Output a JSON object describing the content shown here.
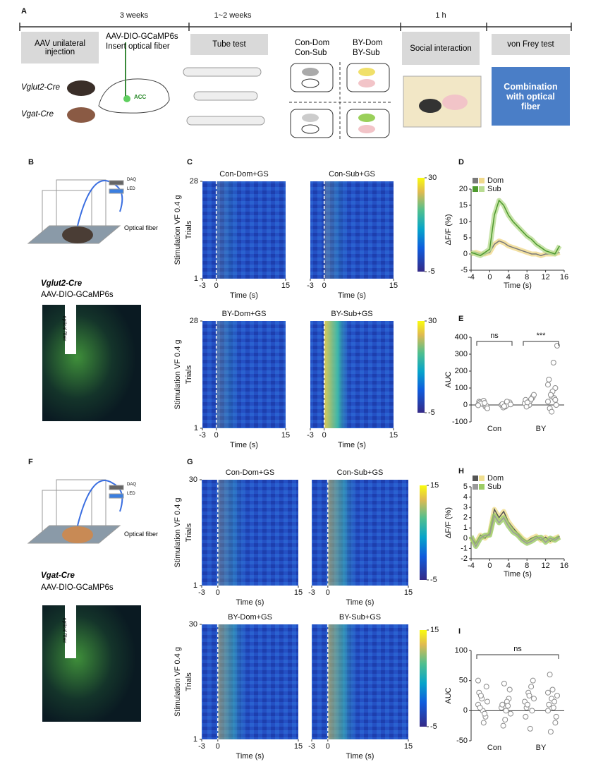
{
  "figure": {
    "panel_letters": [
      "A",
      "B",
      "C",
      "D",
      "E",
      "F",
      "G",
      "H",
      "I"
    ],
    "timeline": [
      "3 weeks",
      "1~2 weeks",
      "1 h"
    ],
    "steps": [
      "AAV unilateral injection",
      "Tube test",
      "Social interaction",
      "von Frey test"
    ],
    "mouse_lines": [
      "Vglut2-Cre",
      "Vgat-Cre"
    ],
    "virus": "AAV-DIO-GCaMP6s",
    "fiber": "Insert optical fiber",
    "region": "ACC",
    "groups": [
      "Con-Dom",
      "Con-Sub",
      "BY-Dom",
      "BY-Sub"
    ],
    "combination": "Combination with optical fiber",
    "setup_labels": [
      "DAQ",
      "LED",
      "Optical fiber"
    ],
    "histology_label": "optical fiber",
    "heatmap_ylabel": "Stimulation VF  0.4 g",
    "heatmap_ylabel2": "Trials",
    "heatmap_xlabel": "Time (s)",
    "heatmap_xlim": [
      -3,
      15
    ],
    "heatmap_xticks": [
      -3,
      0,
      15
    ],
    "heatmap_rows": [
      {
        "titles": [
          "Con-Dom+GS",
          "Con-Sub+GS"
        ],
        "ylim": [
          1,
          28
        ],
        "yticks": [
          1,
          28
        ],
        "clim": [
          -5,
          30
        ],
        "colorbar_ticks": [
          -5,
          30
        ]
      },
      {
        "titles": [
          "BY-Dom+GS",
          "BY-Sub+GS"
        ],
        "ylim": [
          1,
          28
        ],
        "yticks": [
          1,
          28
        ],
        "clim": [
          -5,
          30
        ],
        "colorbar_ticks": [
          -5,
          30
        ]
      },
      {
        "titles": [
          "Con-Dom+GS",
          "Con-Sub+GS"
        ],
        "ylim": [
          1,
          30
        ],
        "yticks": [
          1,
          30
        ],
        "clim": [
          -5,
          15
        ],
        "colorbar_ticks": [
          -5,
          15
        ]
      },
      {
        "titles": [
          "BY-Dom+GS",
          "BY-Sub+GS"
        ],
        "ylim": [
          1,
          30
        ],
        "yticks": [
          1,
          30
        ],
        "clim": [
          -5,
          15
        ],
        "colorbar_ticks": [
          -5,
          15
        ]
      }
    ]
  },
  "chart_data": [
    {
      "type": "line",
      "xlabel": "Time (s)",
      "ylabel": "ΔF/F (%)",
      "x": [
        -4,
        -3,
        -2,
        -1,
        0,
        1,
        2,
        3,
        4,
        5,
        6,
        7,
        8,
        9,
        10,
        11,
        12,
        13,
        14,
        15
      ],
      "xlim": [
        -4,
        16
      ],
      "xticks": [
        -4,
        0,
        4,
        8,
        12,
        16
      ],
      "ylim": [
        -5,
        20
      ],
      "yticks": [
        -5,
        0,
        5,
        10,
        15,
        20
      ],
      "series": [
        {
          "name": "Dom",
          "color": "#7a7a7a",
          "band_color": "#f0d98c",
          "values": [
            0,
            0.5,
            0,
            0,
            0.5,
            3,
            4,
            3.5,
            2.5,
            2,
            1.5,
            1,
            0.5,
            0,
            0,
            -0.5,
            0,
            0,
            0,
            0.5
          ]
        },
        {
          "name": "Sub",
          "color": "#4e9a2e",
          "band_color": "#b9dc92",
          "values": [
            0.5,
            0,
            -0.5,
            0.5,
            1.5,
            12,
            16.5,
            15,
            12,
            10,
            8.5,
            7,
            5.5,
            4.5,
            3,
            2,
            1,
            0.5,
            0,
            2.5
          ]
        }
      ]
    },
    {
      "type": "strip",
      "ylabel": "AUC",
      "categories": [
        "Con",
        "BY"
      ],
      "color": "#8a8a8a",
      "ylim": [
        -100,
        400
      ],
      "yticks": [
        -100,
        0,
        100,
        200,
        300,
        400
      ],
      "annotations": [
        "ns",
        "***"
      ],
      "values": [
        [
          0,
          10,
          -10,
          20,
          5,
          -5,
          15,
          25,
          -20,
          8,
          12,
          -2
        ],
        [
          0,
          -10,
          10,
          5,
          -5,
          15,
          -15,
          20,
          3,
          -8
        ],
        [
          10,
          20,
          40,
          30,
          0,
          50,
          -10,
          25,
          60,
          15,
          35
        ],
        [
          20,
          50,
          100,
          150,
          80,
          0,
          -20,
          250,
          350,
          60,
          40,
          120,
          -40,
          30
        ]
      ]
    },
    {
      "type": "line",
      "xlabel": "Time (s)",
      "ylabel": "ΔF/F (%)",
      "x": [
        -4,
        -3,
        -2,
        -1,
        0,
        1,
        2,
        3,
        4,
        5,
        6,
        7,
        8,
        9,
        10,
        11,
        12,
        13,
        14,
        15
      ],
      "xlim": [
        -4,
        16
      ],
      "xticks": [
        -4,
        0,
        4,
        8,
        12,
        16
      ],
      "ylim": [
        -2,
        5
      ],
      "yticks": [
        -2,
        -1,
        0,
        1,
        2,
        3,
        4,
        5
      ],
      "series": [
        {
          "name": "Dom",
          "color": "#555555",
          "band_color": "#f0df8f",
          "values": [
            0,
            -0.5,
            0.3,
            0,
            0.5,
            2.8,
            2,
            2.6,
            1.6,
            1,
            0.5,
            0,
            -0.3,
            0,
            0.2,
            -0.2,
            0.1,
            -0.3,
            0,
            0.2
          ]
        },
        {
          "name": "Sub",
          "color": "#9a9a9a",
          "band_color": "#9ccc65",
          "values": [
            0.2,
            -0.8,
            0,
            0.3,
            0.3,
            2.2,
            1.5,
            2,
            1.2,
            0.6,
            0.3,
            -0.2,
            -0.5,
            -0.3,
            0,
            0.1,
            -0.4,
            0,
            -0.2,
            0.1
          ]
        }
      ]
    },
    {
      "type": "strip",
      "ylabel": "AUC",
      "categories": [
        "Con",
        "BY"
      ],
      "color": "#8a8a8a",
      "ylim": [
        -50,
        100
      ],
      "yticks": [
        -50,
        0,
        50,
        100
      ],
      "annotations": [
        "ns"
      ],
      "values": [
        [
          10,
          20,
          -10,
          30,
          0,
          40,
          5,
          -20,
          15,
          25,
          -5,
          50
        ],
        [
          5,
          -15,
          20,
          10,
          0,
          35,
          -25,
          15,
          -5,
          45,
          8
        ],
        [
          15,
          30,
          0,
          -10,
          25,
          50,
          5,
          -30,
          20,
          10,
          40
        ],
        [
          0,
          20,
          -20,
          10,
          35,
          -10,
          60,
          5,
          25,
          -35,
          15,
          30
        ]
      ]
    }
  ]
}
